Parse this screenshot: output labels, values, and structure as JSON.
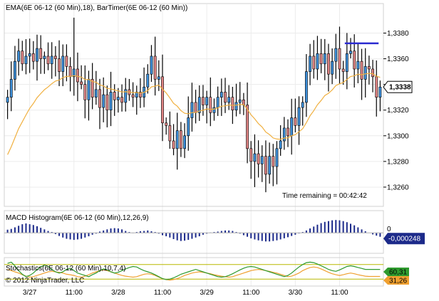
{
  "chart_data": {
    "type": "candlestick",
    "price_panel": {
      "indicator_label": "EMA(6E 06-12 (60 Min),18), BarTimer(6E 06-12 (60 Min))",
      "ylim": [
        1.3245,
        1.3403
      ],
      "y_ticks": [
        "1,3380",
        "1,3360",
        "1,3340",
        "1,3320",
        "1,3300",
        "1,3280",
        "1,3260"
      ],
      "y_tick_values": [
        1.338,
        1.336,
        1.334,
        1.332,
        1.33,
        1.328,
        1.326
      ],
      "last_price": "1,3338",
      "last_price_value": 1.3338,
      "time_remaining_label": "Time remaining = 00:42:42",
      "resistance_level": 1.3372,
      "resistance_from_bar": 92,
      "resistance_to_bar": 100,
      "up_color": "#3d8fd9",
      "down_color": "#e08585",
      "ema_color": "#f0b040",
      "resistance_color": "#2a2ad0"
    },
    "macd_panel": {
      "label": "MACD Histogram(6E 06-12 (60 Min),12,26,9)",
      "zero_label": "0",
      "last_value": "-0,000248",
      "bar_color": "#1c2a8a",
      "amplitude": 0.0007
    },
    "stoch_panel": {
      "label": "Stochastics(6E 06-12 (60 Min),10,7,4)",
      "k_label": "60,31",
      "d_label": "31,26",
      "k_color": "#2e9a2e",
      "d_color": "#f0a030",
      "upper_level": 80,
      "lower_level": 20
    },
    "x_axis": {
      "ticks": [
        {
          "label": "3/27",
          "bar": 6
        },
        {
          "label": "11:00",
          "bar": 18
        },
        {
          "label": "3/28",
          "bar": 30
        },
        {
          "label": "11:00",
          "bar": 42
        },
        {
          "label": "3/29",
          "bar": 54
        },
        {
          "label": "11:00",
          "bar": 66
        },
        {
          "label": "3/30",
          "bar": 78
        },
        {
          "label": "11:00",
          "bar": 90
        }
      ]
    },
    "copyright": "© 2012 NinjaTrader, LLC",
    "closes": [
      1.333,
      1.3344,
      1.3358,
      1.3366,
      1.3356,
      1.3362,
      1.3364,
      1.3358,
      1.3368,
      1.336,
      1.3362,
      1.3356,
      1.3362,
      1.336,
      1.335,
      1.3362,
      1.3354,
      1.3346,
      1.3352,
      1.3342,
      1.334,
      1.3328,
      1.3344,
      1.333,
      1.3336,
      1.3322,
      1.3332,
      1.332,
      1.3334,
      1.3328,
      1.333,
      1.3326,
      1.3336,
      1.3332,
      1.333,
      1.3334,
      1.333,
      1.3338,
      1.3348,
      1.3362,
      1.3344,
      1.3346,
      1.331,
      1.3308,
      1.3296,
      1.329,
      1.3304,
      1.329,
      1.33,
      1.3314,
      1.3326,
      1.3318,
      1.333,
      1.3324,
      1.333,
      1.3318,
      1.3322,
      1.333,
      1.3334,
      1.3326,
      1.333,
      1.332,
      1.3326,
      1.3328,
      1.3324,
      1.329,
      1.328,
      1.3286,
      1.3278,
      1.3284,
      1.327,
      1.3284,
      1.3276,
      1.329,
      1.3296,
      1.3306,
      1.33,
      1.3314,
      1.3308,
      1.3322,
      1.3326,
      1.335,
      1.3362,
      1.3352,
      1.3364,
      1.3356,
      1.3364,
      1.3348,
      1.3358,
      1.3368,
      1.3352,
      1.335,
      1.3364,
      1.3366,
      1.3352,
      1.3358,
      1.3344,
      1.3354,
      1.3352,
      1.3346,
      1.333,
      1.3338
    ],
    "macd_values": [
      0.2,
      0.25,
      0.35,
      0.45,
      0.55,
      0.6,
      0.55,
      0.5,
      0.42,
      0.32,
      0.22,
      0.12,
      0.05,
      -0.08,
      -0.2,
      -0.3,
      -0.38,
      -0.42,
      -0.45,
      -0.42,
      -0.38,
      -0.3,
      -0.22,
      -0.12,
      -0.05,
      0.08,
      0.15,
      0.22,
      0.28,
      0.3,
      0.28,
      0.22,
      0.12,
      0.05,
      -0.02,
      0.05,
      0.1,
      0.12,
      0.15,
      0.1,
      0.05,
      -0.05,
      -0.15,
      -0.22,
      -0.3,
      -0.4,
      -0.48,
      -0.52,
      -0.5,
      -0.45,
      -0.38,
      -0.3,
      -0.22,
      -0.12,
      -0.05,
      0.02,
      0.05,
      0.08,
      0.12,
      0.15,
      0.15,
      0.12,
      0.05,
      -0.05,
      -0.15,
      -0.25,
      -0.35,
      -0.42,
      -0.48,
      -0.52,
      -0.55,
      -0.55,
      -0.52,
      -0.48,
      -0.42,
      -0.35,
      -0.28,
      -0.2,
      -0.12,
      -0.04,
      0.05,
      0.15,
      0.28,
      0.4,
      0.52,
      0.62,
      0.7,
      0.75,
      0.8,
      0.82,
      0.8,
      0.75,
      0.68,
      0.58,
      0.48,
      0.35,
      0.22,
      0.1,
      0.0,
      -0.1,
      -0.18,
      -0.25
    ],
    "stoch_k": [
      85,
      90,
      75,
      55,
      40,
      30,
      35,
      45,
      60,
      70,
      78,
      72,
      60,
      50,
      45,
      50,
      60,
      65,
      55,
      45,
      40,
      35,
      30,
      38,
      45,
      55,
      62,
      58,
      50,
      45,
      48,
      55,
      62,
      68,
      72,
      70,
      62,
      55,
      50,
      45,
      38,
      30,
      22,
      18,
      20,
      25,
      32,
      40,
      45,
      50,
      55,
      60,
      55,
      50,
      45,
      40,
      35,
      30,
      28,
      30,
      35,
      42,
      50,
      58,
      65,
      70,
      72,
      70,
      65,
      60,
      55,
      50,
      45,
      40,
      35,
      30,
      35,
      45,
      58,
      70,
      80,
      88,
      90,
      88,
      82,
      75,
      68,
      60,
      55,
      52,
      58,
      65,
      72,
      75,
      72,
      68,
      64,
      60,
      60,
      60,
      60,
      60
    ],
    "stoch_d": [
      60,
      55,
      50,
      45,
      38,
      32,
      28,
      30,
      35,
      40,
      45,
      50,
      52,
      50,
      48,
      45,
      40,
      38,
      35,
      30,
      28,
      32,
      38,
      45,
      50,
      55,
      58,
      55,
      50,
      45,
      40,
      35,
      32,
      30,
      28,
      30,
      35,
      40,
      42,
      40,
      35,
      28,
      22,
      18,
      16,
      18,
      22,
      28,
      35,
      40,
      45,
      48,
      50,
      48,
      45,
      42,
      38,
      35,
      32,
      30,
      28,
      30,
      35,
      40,
      45,
      50,
      55,
      58,
      60,
      58,
      55,
      52,
      48,
      45,
      40,
      35,
      30,
      32,
      38,
      45,
      55,
      62,
      68,
      70,
      68,
      62,
      55,
      48,
      42,
      38,
      35,
      38,
      42,
      45,
      42,
      38,
      35,
      32,
      31,
      31,
      31,
      31
    ]
  }
}
